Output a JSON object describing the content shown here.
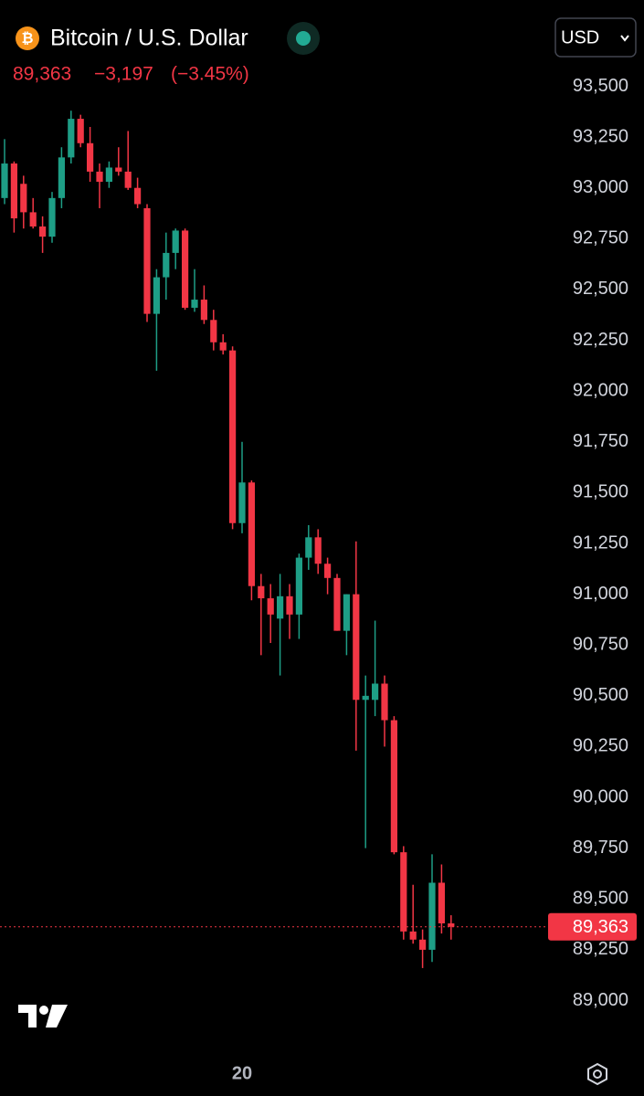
{
  "header": {
    "title": "Bitcoin / U.S. Dollar",
    "price": "89,363",
    "change": "−3,197",
    "change_percent": "(−3.45%)",
    "currency": "USD"
  },
  "chart_data": {
    "type": "candlestick",
    "categories": [
      null,
      null,
      null,
      null,
      null,
      null,
      null,
      null,
      null,
      null,
      null,
      null,
      null,
      null,
      null,
      null,
      null,
      null,
      null,
      null,
      null,
      null,
      null,
      null,
      null,
      "20",
      null,
      null,
      null,
      null,
      null,
      null,
      null,
      null,
      null,
      null,
      null,
      null,
      null,
      null,
      null,
      null,
      null,
      null,
      null,
      null,
      null,
      null
    ],
    "open": [
      92950,
      93120,
      93020,
      92880,
      92810,
      92760,
      92950,
      93150,
      93340,
      93220,
      93080,
      93030,
      93100,
      93080,
      93000,
      92900,
      92380,
      92560,
      92680,
      92790,
      92410,
      92450,
      92350,
      92240,
      92200,
      91350,
      91550,
      91040,
      90980,
      90880,
      90990,
      90900,
      91180,
      91280,
      91150,
      91080,
      90820,
      91000,
      90480,
      90480,
      90560,
      90380,
      89730,
      89340,
      89300,
      89250,
      89580,
      89380
    ],
    "high": [
      93240,
      93130,
      93060,
      92950,
      92860,
      92980,
      93200,
      93380,
      93360,
      93300,
      93120,
      93130,
      93200,
      93280,
      93050,
      92920,
      92600,
      92780,
      92800,
      92800,
      92600,
      92520,
      92400,
      92280,
      92220,
      91750,
      91560,
      91100,
      91050,
      91100,
      91050,
      91200,
      91340,
      91320,
      91180,
      91100,
      91000,
      91260,
      90600,
      90870,
      90600,
      90400,
      89760,
      89570,
      89350,
      89720,
      89670,
      89420
    ],
    "low": [
      92920,
      92780,
      92800,
      92800,
      92680,
      92730,
      92900,
      93120,
      93200,
      93030,
      92900,
      93000,
      93060,
      92990,
      92900,
      92340,
      92100,
      92450,
      92600,
      92400,
      92390,
      92330,
      92200,
      92180,
      91320,
      91300,
      90970,
      90700,
      90760,
      90600,
      90780,
      90780,
      91120,
      91100,
      91000,
      90820,
      90700,
      90230,
      89750,
      90400,
      90250,
      89720,
      89300,
      89280,
      89160,
      89190,
      89330,
      89300
    ],
    "close": [
      93120,
      92850,
      92880,
      92810,
      92760,
      92950,
      93150,
      93340,
      93220,
      93080,
      93030,
      93100,
      93080,
      93000,
      92920,
      92380,
      92560,
      92680,
      92790,
      92410,
      92450,
      92350,
      92240,
      92200,
      91350,
      91550,
      91040,
      90980,
      90900,
      90990,
      90900,
      91180,
      91280,
      91150,
      91080,
      90820,
      91000,
      90480,
      90500,
      90560,
      90380,
      89730,
      89340,
      89300,
      89250,
      89580,
      89380,
      89363
    ],
    "up_color": "#1e9e86",
    "down_color": "#f23645",
    "ylim": [
      88800,
      93700
    ],
    "yticks": [
      {
        "value": 89000,
        "label": "89,000"
      },
      {
        "value": 89250,
        "label": "89,250"
      },
      {
        "value": 89500,
        "label": "89,500"
      },
      {
        "value": 89750,
        "label": "89,750"
      },
      {
        "value": 90000,
        "label": "90,000"
      },
      {
        "value": 90250,
        "label": "90,250"
      },
      {
        "value": 90500,
        "label": "90,500"
      },
      {
        "value": 90750,
        "label": "90,750"
      },
      {
        "value": 91000,
        "label": "91,000"
      },
      {
        "value": 91250,
        "label": "91,250"
      },
      {
        "value": 91500,
        "label": "91,500"
      },
      {
        "value": 91750,
        "label": "91,750"
      },
      {
        "value": 92000,
        "label": "92,000"
      },
      {
        "value": 92250,
        "label": "92,250"
      },
      {
        "value": 92500,
        "label": "92,500"
      },
      {
        "value": 92750,
        "label": "92,750"
      },
      {
        "value": 93000,
        "label": "93,000"
      },
      {
        "value": 93250,
        "label": "93,250"
      },
      {
        "value": 93500,
        "label": "93,500"
      }
    ],
    "last_price": {
      "value": 89363,
      "label": "89,363"
    }
  }
}
